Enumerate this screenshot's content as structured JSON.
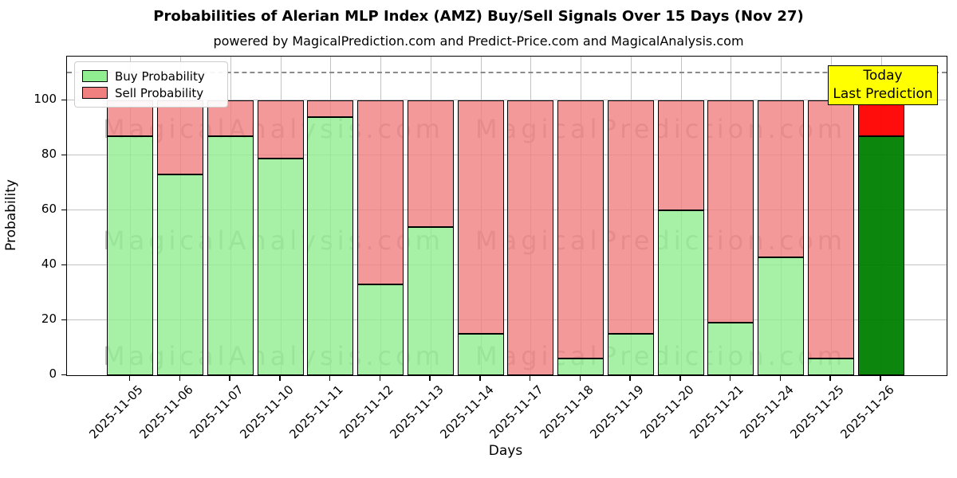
{
  "title": "Probabilities of Alerian MLP Index (AMZ) Buy/Sell Signals Over 15 Days (Nov 27)",
  "subtitle": "powered by MagicalPrediction.com and Predict-Price.com and MagicalAnalysis.com",
  "axes": {
    "x_label": "Days",
    "y_label": "Probability",
    "y_ticks": [
      0,
      20,
      40,
      60,
      80,
      100
    ],
    "ylim": [
      0,
      116
    ],
    "dashed_line_y": 110,
    "grid": "on"
  },
  "legend": [
    {
      "label": "Buy Probability",
      "color": "#90EE90"
    },
    {
      "label": "Sell Probability",
      "color": "#F08080"
    }
  ],
  "annotation": {
    "lines": [
      "Today",
      "Last Prediction"
    ],
    "bg_color": "#FFFF00"
  },
  "watermarks": {
    "left_text": "MagicalAnalysis.com",
    "right_text": "MagicalPrediction.com"
  },
  "chart_data": {
    "type": "bar",
    "stacked": true,
    "title": "Probabilities of Alerian MLP Index (AMZ) Buy/Sell Signals Over 15 Days (Nov 27)",
    "xlabel": "Days",
    "ylabel": "Probability",
    "ylim": [
      0,
      116
    ],
    "categories": [
      "2025-11-05",
      "2025-11-06",
      "2025-11-07",
      "2025-11-10",
      "2025-11-11",
      "2025-11-12",
      "2025-11-13",
      "2025-11-14",
      "2025-11-17",
      "2025-11-18",
      "2025-11-19",
      "2025-11-20",
      "2025-11-21",
      "2025-11-24",
      "2025-11-25",
      "2025-11-26"
    ],
    "series": [
      {
        "name": "Buy Probability",
        "color": "#90EE90",
        "values": [
          87,
          73,
          87,
          79,
          94,
          33,
          54,
          15,
          0,
          6,
          15,
          60,
          19,
          43,
          6,
          87
        ]
      },
      {
        "name": "Sell Probability",
        "color": "#F08080",
        "values": [
          13,
          27,
          13,
          21,
          6,
          67,
          46,
          85,
          100,
          94,
          85,
          40,
          81,
          57,
          94,
          13
        ]
      }
    ],
    "today_bar": {
      "category": "2025-11-26",
      "buy_color": "#008000",
      "sell_color": "#FF0000"
    },
    "threshold_dashed_line": 110,
    "legend_position": "upper left"
  }
}
